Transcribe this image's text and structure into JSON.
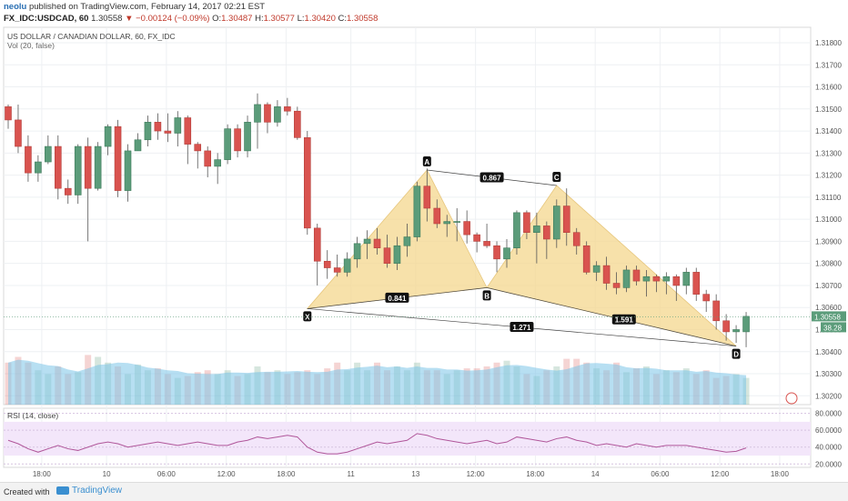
{
  "header": {
    "username": "neolu",
    "published_text": "published on TradingView.com, February 14, 2017 02:21 EST",
    "symbol": "FX_IDC:USDCAD, 60",
    "last": "1.30558",
    "change": "▼ −0.00124 (−0.09%)",
    "o_label": "O:",
    "o_value": "1.30487",
    "h_label": "H:",
    "h_value": "1.30577",
    "l_label": "L:",
    "l_value": "1.30420",
    "c_label": "C:",
    "c_value": "1.30558"
  },
  "footer": {
    "created_with": "Created with",
    "brand": "TradingView"
  },
  "colors": {
    "up": "#5b9c7a",
    "down": "#d9534f",
    "pattern_fill": "#f5d78e",
    "rsi_bg": "#f3e6fa",
    "rsi_line": "#b0569a",
    "volume": "#7cc4e8"
  },
  "chart_data": {
    "type": "candlestick",
    "title": "US DOLLAR / CANADIAN DOLLAR, 60, FX_IDC",
    "volume_label": "Vol (20, false)",
    "price_ticks": [
      "1.31800",
      "1.31700",
      "1.31600",
      "1.31500",
      "1.31400",
      "1.31300",
      "1.31200",
      "1.31100",
      "1.31000",
      "1.30900",
      "1.30800",
      "1.30700",
      "1.30600",
      "1.30500",
      "1.30400",
      "1.30300",
      "1.30200"
    ],
    "ylim": [
      1.3016,
      1.3187
    ],
    "last_price_label": "1.30558",
    "volume_label_value": "38.28",
    "x_ticks": [
      "18:00",
      "10",
      "06:00",
      "12:00",
      "18:00",
      "11",
      "13",
      "12:00",
      "18:00",
      "14",
      "06:00",
      "12:00",
      "18:00"
    ],
    "candles": [
      [
        1.3151,
        1.3152,
        1.3141,
        1.3145
      ],
      [
        1.3145,
        1.3152,
        1.313,
        1.3133
      ],
      [
        1.3133,
        1.3138,
        1.3117,
        1.3121
      ],
      [
        1.3121,
        1.3129,
        1.3117,
        1.3126
      ],
      [
        1.3126,
        1.3138,
        1.3125,
        1.3133
      ],
      [
        1.3133,
        1.3138,
        1.3109,
        1.3114
      ],
      [
        1.3114,
        1.3118,
        1.3107,
        1.3111
      ],
      [
        1.3111,
        1.3134,
        1.3107,
        1.3133
      ],
      [
        1.3133,
        1.3137,
        1.309,
        1.3114
      ],
      [
        1.3114,
        1.3135,
        1.3113,
        1.3133
      ],
      [
        1.3133,
        1.3143,
        1.3129,
        1.3142
      ],
      [
        1.3142,
        1.3145,
        1.311,
        1.3113
      ],
      [
        1.3113,
        1.3134,
        1.3108,
        1.3131
      ],
      [
        1.3131,
        1.3139,
        1.3131,
        1.3136
      ],
      [
        1.3136,
        1.3147,
        1.3133,
        1.3144
      ],
      [
        1.3144,
        1.3148,
        1.3136,
        1.314
      ],
      [
        1.314,
        1.3148,
        1.3135,
        1.3139
      ],
      [
        1.3139,
        1.3149,
        1.3133,
        1.3146
      ],
      [
        1.3146,
        1.3147,
        1.3125,
        1.3134
      ],
      [
        1.3134,
        1.3135,
        1.3123,
        1.3131
      ],
      [
        1.3131,
        1.3133,
        1.3119,
        1.3124
      ],
      [
        1.3124,
        1.313,
        1.3116,
        1.3127
      ],
      [
        1.3127,
        1.3143,
        1.3125,
        1.3141
      ],
      [
        1.3141,
        1.3143,
        1.3128,
        1.3131
      ],
      [
        1.3131,
        1.3147,
        1.3128,
        1.3144
      ],
      [
        1.3144,
        1.3157,
        1.3132,
        1.3152
      ],
      [
        1.3152,
        1.3153,
        1.3139,
        1.3144
      ],
      [
        1.3144,
        1.3154,
        1.3142,
        1.3151
      ],
      [
        1.3151,
        1.3155,
        1.3147,
        1.3149
      ],
      [
        1.3149,
        1.3151,
        1.3136,
        1.3137
      ],
      [
        1.3137,
        1.314,
        1.3093,
        1.3096
      ],
      [
        1.3096,
        1.3098,
        1.307,
        1.3081
      ],
      [
        1.3081,
        1.3086,
        1.3073,
        1.3078
      ],
      [
        1.3078,
        1.3084,
        1.3074,
        1.3076
      ],
      [
        1.3076,
        1.3085,
        1.3074,
        1.3082
      ],
      [
        1.3082,
        1.3092,
        1.3078,
        1.3089
      ],
      [
        1.3089,
        1.3095,
        1.3082,
        1.3091
      ],
      [
        1.3091,
        1.3096,
        1.3084,
        1.3087
      ],
      [
        1.3087,
        1.3093,
        1.3078,
        1.308
      ],
      [
        1.308,
        1.3092,
        1.3077,
        1.3088
      ],
      [
        1.3088,
        1.3098,
        1.3083,
        1.3092
      ],
      [
        1.3092,
        1.3117,
        1.309,
        1.3115
      ],
      [
        1.3115,
        1.3123,
        1.3099,
        1.3105
      ],
      [
        1.3105,
        1.3109,
        1.3096,
        1.3098
      ],
      [
        1.3098,
        1.3102,
        1.3092,
        1.3099
      ],
      [
        1.3099,
        1.3105,
        1.309,
        1.3099
      ],
      [
        1.3099,
        1.3104,
        1.3089,
        1.3093
      ],
      [
        1.3093,
        1.3094,
        1.3085,
        1.309
      ],
      [
        1.309,
        1.3098,
        1.3087,
        1.3088
      ],
      [
        1.3088,
        1.309,
        1.3076,
        1.3082
      ],
      [
        1.3082,
        1.3091,
        1.3078,
        1.3087
      ],
      [
        1.3087,
        1.3104,
        1.3084,
        1.3103
      ],
      [
        1.3103,
        1.3104,
        1.3091,
        1.3094
      ],
      [
        1.3094,
        1.3103,
        1.308,
        1.3097
      ],
      [
        1.3097,
        1.3099,
        1.3082,
        1.3091
      ],
      [
        1.3091,
        1.3109,
        1.3087,
        1.3106
      ],
      [
        1.3106,
        1.3114,
        1.3088,
        1.3094
      ],
      [
        1.3094,
        1.3096,
        1.3084,
        1.3088
      ],
      [
        1.3088,
        1.309,
        1.3075,
        1.3076
      ],
      [
        1.3076,
        1.3081,
        1.3072,
        1.3079
      ],
      [
        1.3079,
        1.3083,
        1.3068,
        1.3071
      ],
      [
        1.3071,
        1.3076,
        1.3066,
        1.3069
      ],
      [
        1.3069,
        1.3079,
        1.3067,
        1.3077
      ],
      [
        1.3077,
        1.3079,
        1.307,
        1.3072
      ],
      [
        1.3072,
        1.3077,
        1.3065,
        1.3074
      ],
      [
        1.3074,
        1.3075,
        1.3067,
        1.3072
      ],
      [
        1.3072,
        1.3076,
        1.3066,
        1.3074
      ],
      [
        1.3074,
        1.3075,
        1.3063,
        1.307
      ],
      [
        1.307,
        1.3078,
        1.3066,
        1.3076
      ],
      [
        1.3076,
        1.3078,
        1.3063,
        1.3066
      ],
      [
        1.3066,
        1.3068,
        1.3058,
        1.3063
      ],
      [
        1.3063,
        1.3066,
        1.305,
        1.3054
      ],
      [
        1.3054,
        1.3057,
        1.3045,
        1.3049
      ],
      [
        1.3049,
        1.3052,
        1.3044,
        1.305
      ],
      [
        1.3049,
        1.3058,
        1.3042,
        1.3056
      ]
    ],
    "volume": [
      22,
      25,
      22,
      18,
      16,
      20,
      16,
      17,
      26,
      25,
      22,
      20,
      16,
      21,
      18,
      19,
      16,
      14,
      15,
      17,
      18,
      16,
      18,
      15,
      16,
      20,
      17,
      18,
      16,
      17,
      18,
      16,
      19,
      22,
      18,
      22,
      18,
      22,
      18,
      20,
      18,
      22,
      18,
      18,
      16,
      18,
      19,
      19,
      20,
      22,
      23,
      20,
      16,
      15,
      18,
      20,
      24,
      24,
      22,
      19,
      18,
      22,
      17,
      19,
      20,
      16,
      18,
      17,
      19,
      16,
      18,
      14,
      15,
      16,
      14
    ],
    "volume_ylim": [
      0,
      50
    ],
    "harmonic_pattern": {
      "points": [
        {
          "label": "X",
          "index": 30,
          "price": 1.30595
        },
        {
          "label": "A",
          "index": 42,
          "price": 1.31223
        },
        {
          "label": "B",
          "index": 48,
          "price": 1.3069
        },
        {
          "label": "C",
          "index": 55,
          "price": 1.31153
        },
        {
          "label": "D",
          "index": 73,
          "price": 1.30425
        }
      ],
      "ratios": [
        {
          "text": "0.841",
          "between": [
            "X",
            "B"
          ]
        },
        {
          "text": "0.867",
          "between": [
            "A",
            "C"
          ]
        },
        {
          "text": "1.591",
          "between": [
            "B",
            "D"
          ]
        },
        {
          "text": "1.271",
          "between": [
            "X",
            "D"
          ]
        }
      ]
    },
    "rsi": {
      "label": "RSI (14, close)",
      "ticks": [
        "80.0000",
        "60.0000",
        "40.0000",
        "20.0000"
      ],
      "ylim": [
        16,
        86
      ],
      "band": [
        30,
        70
      ],
      "values": [
        48,
        44,
        38,
        34,
        38,
        42,
        38,
        36,
        40,
        44,
        46,
        44,
        40,
        42,
        44,
        46,
        44,
        42,
        44,
        46,
        44,
        42,
        42,
        46,
        48,
        52,
        50,
        52,
        54,
        52,
        40,
        34,
        32,
        32,
        34,
        38,
        42,
        46,
        44,
        46,
        48,
        56,
        54,
        50,
        48,
        46,
        44,
        46,
        48,
        44,
        46,
        52,
        50,
        48,
        46,
        50,
        52,
        48,
        46,
        42,
        44,
        42,
        40,
        44,
        42,
        40,
        42,
        42,
        42,
        40,
        38,
        36,
        34,
        35,
        39
      ]
    }
  }
}
